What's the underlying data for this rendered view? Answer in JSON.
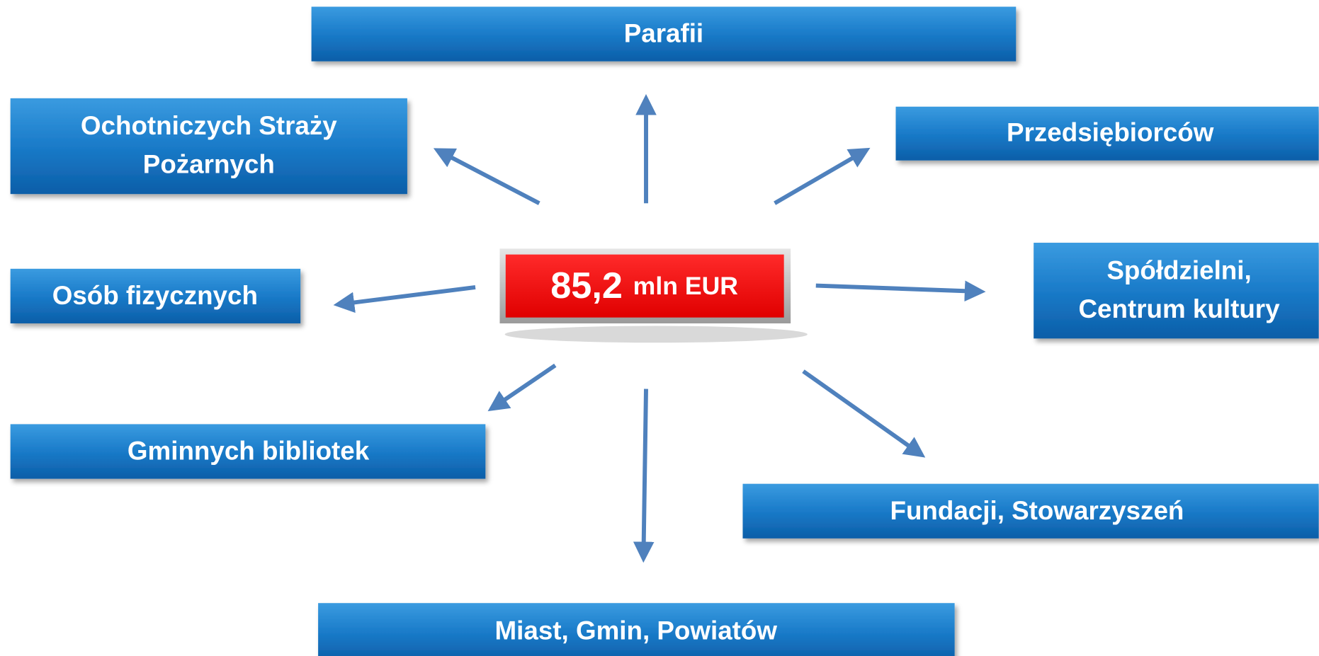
{
  "center": {
    "value": "85,2",
    "unit": "mln EUR"
  },
  "nodes": [
    {
      "label": [
        "Parafii"
      ]
    },
    {
      "label": [
        "Ochotniczych Straży",
        "Pożarnych"
      ]
    },
    {
      "label": [
        "Przedsiębiorców"
      ]
    },
    {
      "label": [
        "Osób fizycznych"
      ]
    },
    {
      "label": [
        "Spółdzielni,",
        "Centrum kultury"
      ]
    },
    {
      "label": [
        "Gminnych bibliotek"
      ]
    },
    {
      "label": [
        "Fundacji, Stowarzyszeń"
      ]
    },
    {
      "label": [
        "Miast, Gmin, Powiatów"
      ]
    }
  ]
}
